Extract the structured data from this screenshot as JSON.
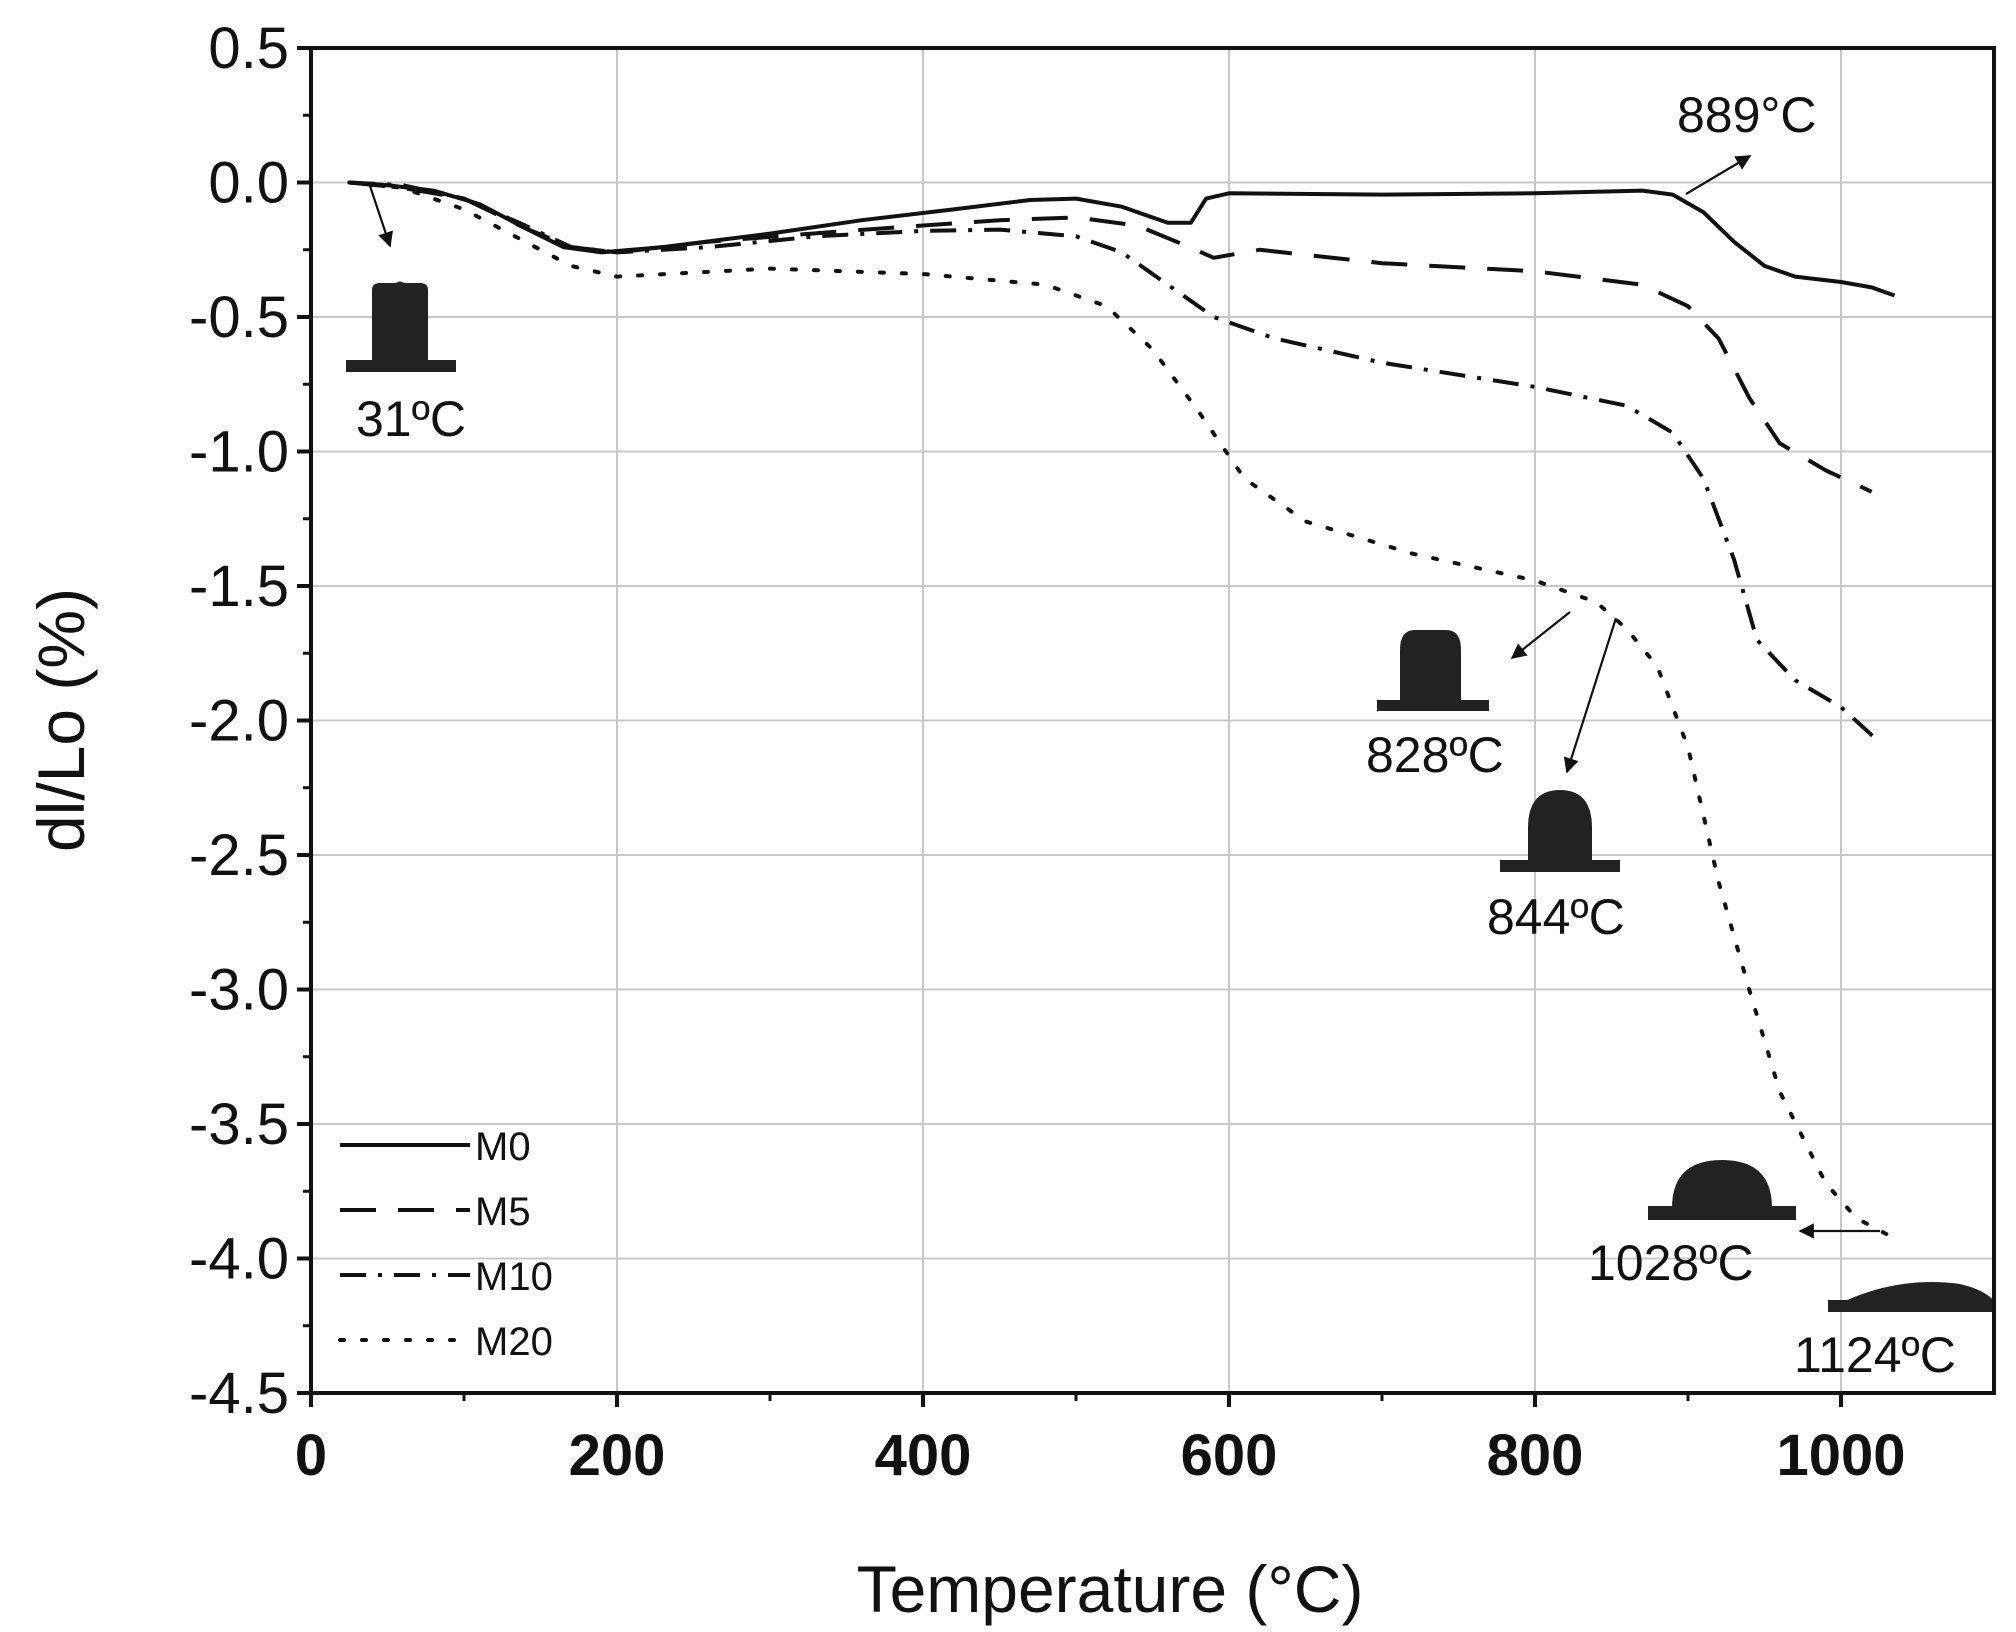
{
  "chart_data": {
    "type": "line",
    "xlabel": "Temperature (°C)",
    "ylabel": "dl/Lo (%)",
    "xlim": [
      0,
      1100
    ],
    "ylim": [
      -4.5,
      0.5
    ],
    "x_ticks": [
      0,
      200,
      400,
      600,
      800,
      1000
    ],
    "y_ticks": [
      0.5,
      0.0,
      -0.5,
      -1.0,
      -1.5,
      -2.0,
      -2.5,
      -3.0,
      -3.5,
      -4.0,
      -4.5
    ],
    "x_tick_labels": [
      "0",
      "200",
      "400",
      "600",
      "800",
      "1000"
    ],
    "y_tick_labels": [
      "0.5",
      "0.0",
      "-0.5",
      "-1.0",
      "-1.5",
      "-2.0",
      "-2.5",
      "-3.0",
      "-3.5",
      "-4.0",
      "-4.5"
    ],
    "grid": true,
    "legend_position": "bottom-left",
    "series": [
      {
        "name": "M0",
        "style": "solid",
        "points": [
          [
            25,
            0
          ],
          [
            50,
            -0.01
          ],
          [
            80,
            -0.03
          ],
          [
            110,
            -0.08
          ],
          [
            140,
            -0.17
          ],
          [
            165,
            -0.24
          ],
          [
            190,
            -0.26
          ],
          [
            230,
            -0.24
          ],
          [
            300,
            -0.19
          ],
          [
            360,
            -0.14
          ],
          [
            420,
            -0.1
          ],
          [
            470,
            -0.065
          ],
          [
            500,
            -0.06
          ],
          [
            530,
            -0.09
          ],
          [
            560,
            -0.15
          ],
          [
            575,
            -0.15
          ],
          [
            585,
            -0.06
          ],
          [
            600,
            -0.04
          ],
          [
            700,
            -0.045
          ],
          [
            800,
            -0.04
          ],
          [
            870,
            -0.03
          ],
          [
            890,
            -0.045
          ],
          [
            910,
            -0.11
          ],
          [
            930,
            -0.22
          ],
          [
            950,
            -0.31
          ],
          [
            970,
            -0.35
          ],
          [
            1000,
            -0.37
          ],
          [
            1020,
            -0.39
          ],
          [
            1035,
            -0.42
          ]
        ]
      },
      {
        "name": "M5",
        "style": "dashed",
        "points": [
          [
            25,
            0
          ],
          [
            60,
            -0.02
          ],
          [
            100,
            -0.06
          ],
          [
            140,
            -0.17
          ],
          [
            170,
            -0.24
          ],
          [
            200,
            -0.26
          ],
          [
            260,
            -0.22
          ],
          [
            350,
            -0.18
          ],
          [
            450,
            -0.14
          ],
          [
            500,
            -0.13
          ],
          [
            540,
            -0.16
          ],
          [
            570,
            -0.23
          ],
          [
            590,
            -0.28
          ],
          [
            620,
            -0.25
          ],
          [
            700,
            -0.3
          ],
          [
            800,
            -0.33
          ],
          [
            870,
            -0.38
          ],
          [
            900,
            -0.46
          ],
          [
            920,
            -0.58
          ],
          [
            940,
            -0.8
          ],
          [
            960,
            -0.97
          ],
          [
            990,
            -1.07
          ],
          [
            1020,
            -1.15
          ]
        ]
      },
      {
        "name": "M10",
        "style": "dashdot",
        "points": [
          [
            25,
            0
          ],
          [
            60,
            -0.01
          ],
          [
            100,
            -0.06
          ],
          [
            140,
            -0.16
          ],
          [
            170,
            -0.24
          ],
          [
            200,
            -0.26
          ],
          [
            260,
            -0.24
          ],
          [
            330,
            -0.2
          ],
          [
            400,
            -0.18
          ],
          [
            450,
            -0.175
          ],
          [
            500,
            -0.2
          ],
          [
            530,
            -0.26
          ],
          [
            560,
            -0.38
          ],
          [
            590,
            -0.5
          ],
          [
            630,
            -0.58
          ],
          [
            700,
            -0.67
          ],
          [
            800,
            -0.76
          ],
          [
            860,
            -0.83
          ],
          [
            890,
            -0.93
          ],
          [
            910,
            -1.1
          ],
          [
            930,
            -1.4
          ],
          [
            945,
            -1.7
          ],
          [
            970,
            -1.85
          ],
          [
            1000,
            -1.95
          ],
          [
            1025,
            -2.08
          ]
        ]
      },
      {
        "name": "M20",
        "style": "dotted",
        "points": [
          [
            25,
            0
          ],
          [
            60,
            -0.02
          ],
          [
            100,
            -0.1
          ],
          [
            140,
            -0.22
          ],
          [
            170,
            -0.31
          ],
          [
            200,
            -0.35
          ],
          [
            300,
            -0.32
          ],
          [
            400,
            -0.34
          ],
          [
            480,
            -0.38
          ],
          [
            520,
            -0.46
          ],
          [
            550,
            -0.62
          ],
          [
            580,
            -0.85
          ],
          [
            610,
            -1.1
          ],
          [
            650,
            -1.26
          ],
          [
            720,
            -1.38
          ],
          [
            800,
            -1.48
          ],
          [
            840,
            -1.56
          ],
          [
            860,
            -1.66
          ],
          [
            880,
            -1.8
          ],
          [
            900,
            -2.1
          ],
          [
            920,
            -2.6
          ],
          [
            940,
            -3.0
          ],
          [
            960,
            -3.38
          ],
          [
            990,
            -3.72
          ],
          [
            1010,
            -3.85
          ],
          [
            1030,
            -3.91
          ]
        ]
      }
    ],
    "annotations": [
      {
        "text": "889°C",
        "x": 889,
        "y": -0.05
      },
      {
        "text": "31ºC",
        "x": 31,
        "y": 0
      },
      {
        "text": "828ºC",
        "x": 828,
        "y": -1.55
      },
      {
        "text": "844ºC",
        "x": 844,
        "y": -1.6
      },
      {
        "text": "1028ºC",
        "x": 1028,
        "y": -3.91
      },
      {
        "text": "1124ºC",
        "x": 1124,
        "y": -4.2
      }
    ]
  }
}
